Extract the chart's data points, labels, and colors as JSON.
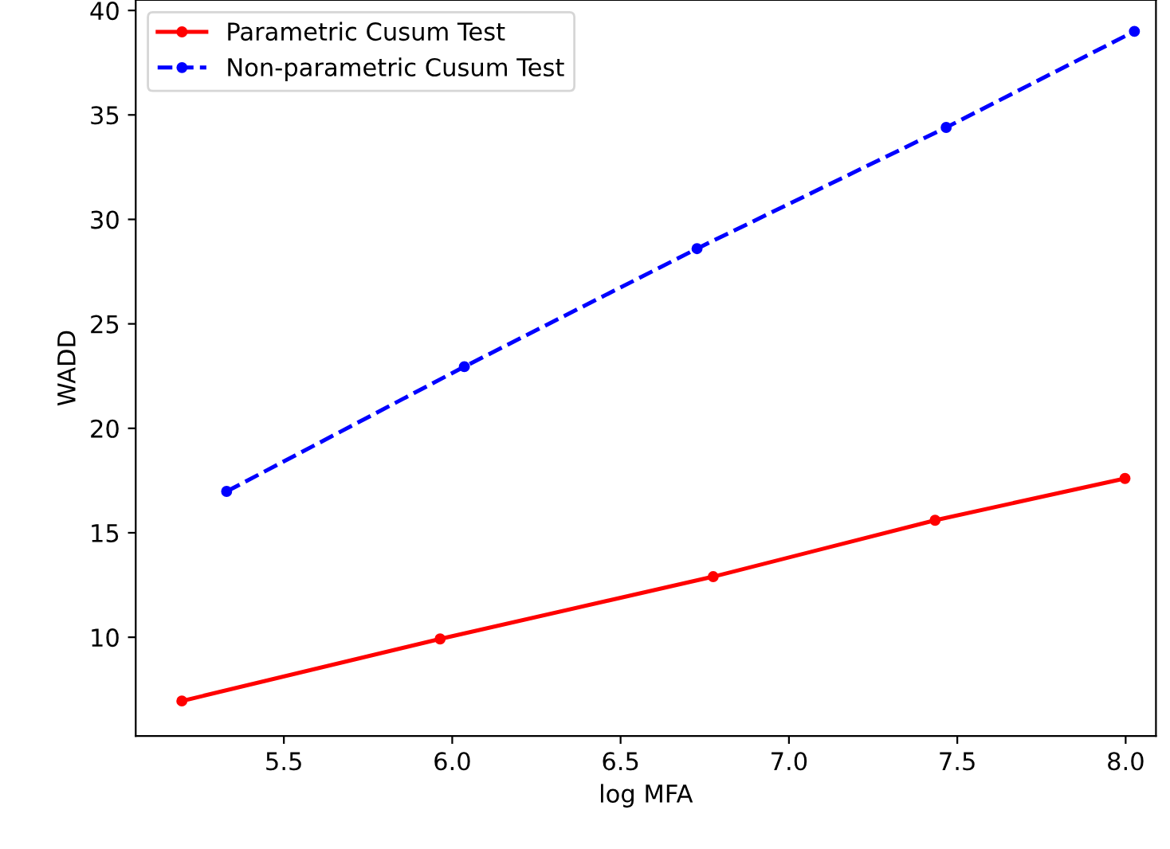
{
  "chart_data": {
    "type": "line",
    "xlabel": "log MFA",
    "ylabel": "WADD",
    "series": [
      {
        "name": "Parametric Cusum Test",
        "color": "#ff0000",
        "x": [
          5.197,
          5.964,
          6.775,
          7.434,
          7.998
        ],
        "values": [
          6.95,
          9.92,
          12.9,
          15.6,
          17.6
        ],
        "line_style": "solid"
      },
      {
        "name": "Non-parametric Cusum Test",
        "color": "#0000ff",
        "x": [
          5.33,
          6.036,
          6.727,
          7.467,
          8.026
        ],
        "values": [
          16.98,
          22.95,
          28.6,
          34.4,
          39.0
        ],
        "line_style": "dashed"
      }
    ],
    "marker": "circle",
    "legend": "top left",
    "grid": false,
    "xlim": [
      5.06,
      8.09
    ],
    "ylim": [
      5.27,
      40.5
    ],
    "xticks": [
      5.5,
      {
        "value": 6,
        "label": "6.0"
      },
      6.5,
      {
        "value": 7,
        "label": "7.0"
      },
      7.5,
      {
        "value": 8,
        "label": "8.0"
      }
    ],
    "yticks": [
      10,
      15,
      20,
      25,
      30,
      35,
      40
    ]
  }
}
